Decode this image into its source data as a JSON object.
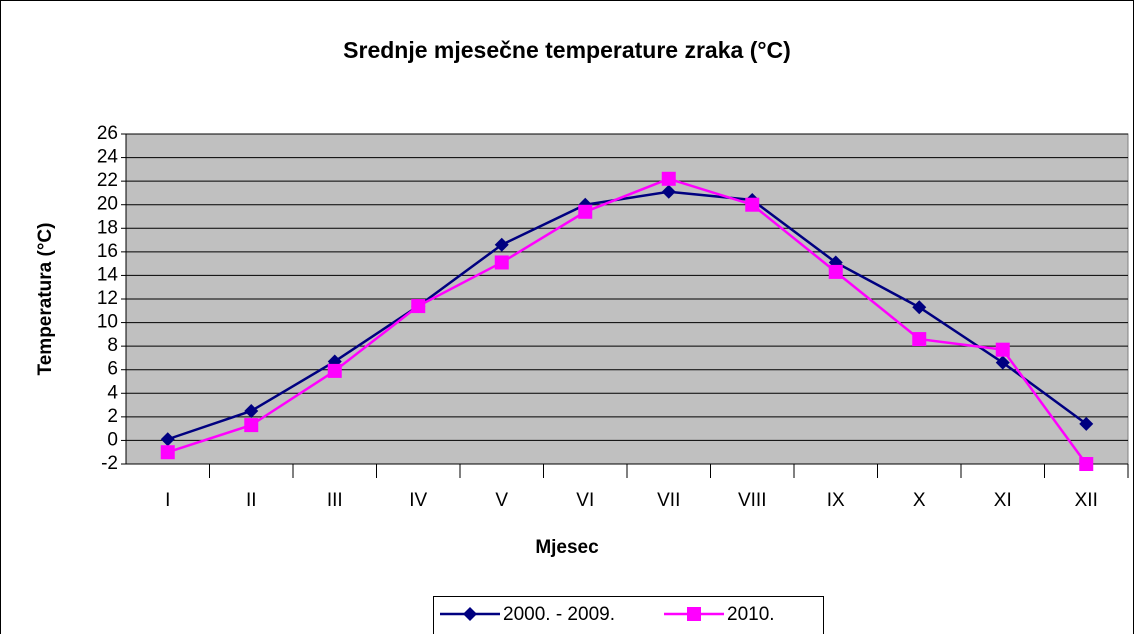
{
  "chart_data": {
    "type": "line",
    "title": "Srednje mjesečne temperature zraka (°C)",
    "xlabel": "Mjesec",
    "ylabel": "Temperatura (°C)",
    "categories": [
      "I",
      "II",
      "III",
      "IV",
      "V",
      "VI",
      "VII",
      "VIII",
      "IX",
      "X",
      "XI",
      "XII"
    ],
    "series": [
      {
        "name": "2000. - 2009.",
        "color": "#000080",
        "marker": "diamond",
        "values": [
          0.1,
          2.5,
          6.7,
          11.4,
          16.6,
          20.0,
          21.1,
          20.4,
          15.1,
          11.3,
          6.6,
          1.4
        ]
      },
      {
        "name": "2010.",
        "color": "#ff00ff",
        "marker": "square",
        "values": [
          -1.0,
          1.3,
          5.9,
          11.4,
          15.1,
          19.4,
          22.2,
          20.0,
          14.3,
          8.6,
          7.7,
          -2.0
        ]
      }
    ],
    "ylim": [
      -2,
      26
    ],
    "yticks": [
      -2,
      0,
      2,
      4,
      6,
      8,
      10,
      12,
      14,
      16,
      18,
      20,
      22,
      24,
      26
    ],
    "grid": true,
    "plot_background": "#c0c0c0",
    "legend": "bottom"
  }
}
